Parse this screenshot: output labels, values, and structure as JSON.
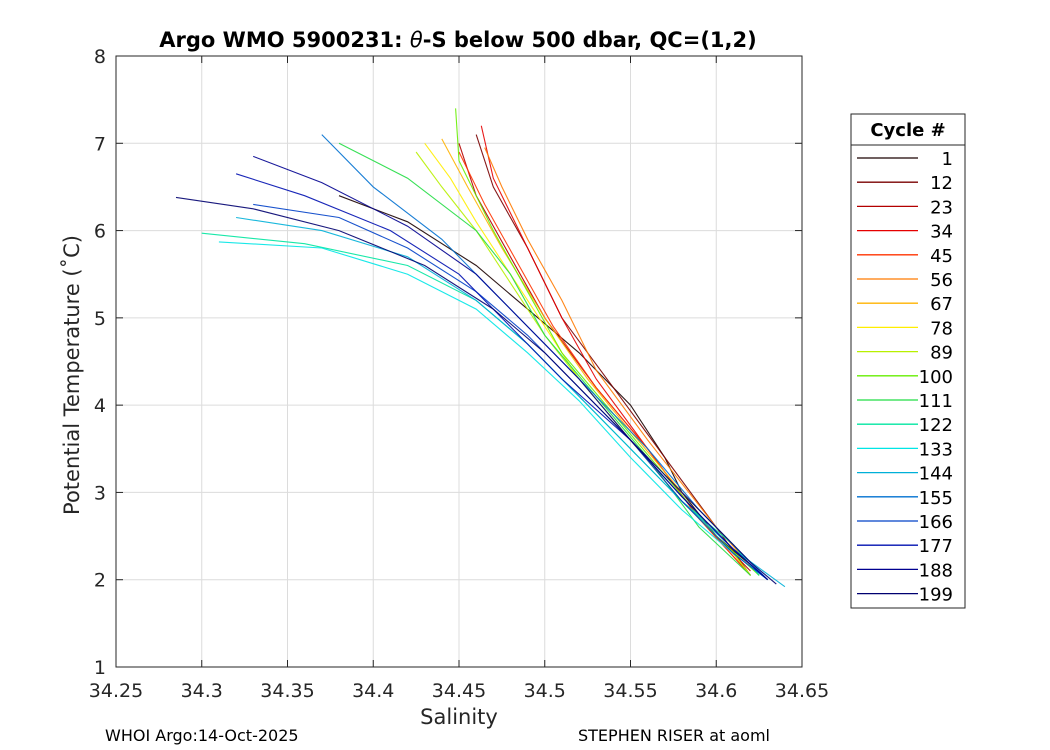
{
  "chart_data": {
    "type": "line",
    "title": "Argo WMO 5900231: θ-S below 500 dbar,  QC=(1,2)",
    "title_parts": {
      "pre": "Argo WMO 5900231: ",
      "theta": "θ",
      "post": "-S below 500 dbar,  QC=(1,2)"
    },
    "xlabel": "Salinity",
    "ylabel": "Potential Temperature (˚C)",
    "xlim": [
      34.25,
      34.65
    ],
    "ylim": [
      1,
      8
    ],
    "x_ticks": [
      34.25,
      34.3,
      34.35,
      34.4,
      34.45,
      34.5,
      34.55,
      34.6,
      34.65
    ],
    "y_ticks": [
      1,
      2,
      3,
      4,
      5,
      6,
      7,
      8
    ],
    "x_tick_labels": [
      "34.25",
      "34.3",
      "34.35",
      "34.4",
      "34.45",
      "34.5",
      "34.55",
      "34.6",
      "34.65"
    ],
    "y_tick_labels": [
      "1",
      "2",
      "3",
      "4",
      "5",
      "6",
      "7",
      "8"
    ],
    "grid": true,
    "legend": {
      "title": "Cycle #",
      "position": "right-outside",
      "entries": [
        {
          "label": "1",
          "color": "#1a0000"
        },
        {
          "label": "12",
          "color": "#7a0000"
        },
        {
          "label": "23",
          "color": "#b30000"
        },
        {
          "label": "34",
          "color": "#e60000"
        },
        {
          "label": "45",
          "color": "#ff3300"
        },
        {
          "label": "56",
          "color": "#ff7a00"
        },
        {
          "label": "67",
          "color": "#ffb300"
        },
        {
          "label": "78",
          "color": "#ffee00"
        },
        {
          "label": "89",
          "color": "#b8f000"
        },
        {
          "label": "100",
          "color": "#66ee00"
        },
        {
          "label": "111",
          "color": "#22dd44"
        },
        {
          "label": "122",
          "color": "#00e6a0"
        },
        {
          "label": "133",
          "color": "#00e6e6"
        },
        {
          "label": "144",
          "color": "#00b0d8"
        },
        {
          "label": "155",
          "color": "#0070d0"
        },
        {
          "label": "166",
          "color": "#0040c8"
        },
        {
          "label": "177",
          "color": "#0010b0"
        },
        {
          "label": "188",
          "color": "#000090"
        },
        {
          "label": "199",
          "color": "#000070"
        }
      ]
    },
    "series": [
      {
        "name": "1",
        "x": [
          34.38,
          34.42,
          34.46,
          34.49,
          34.52,
          34.55,
          34.57,
          34.58,
          34.6,
          34.63
        ],
        "y": [
          6.4,
          6.1,
          5.6,
          5.1,
          4.6,
          4.0,
          3.4,
          3.0,
          2.5,
          2.0
        ]
      },
      {
        "name": "12",
        "x": [
          34.46,
          34.47,
          34.49,
          34.51,
          34.54,
          34.57,
          34.6,
          34.62
        ],
        "y": [
          7.1,
          6.5,
          5.8,
          5.0,
          4.2,
          3.4,
          2.6,
          2.05
        ]
      },
      {
        "name": "23",
        "x": [
          34.45,
          34.46,
          34.48,
          34.5,
          34.53,
          34.56,
          34.59,
          34.62
        ],
        "y": [
          7.0,
          6.4,
          5.7,
          5.0,
          4.2,
          3.5,
          2.7,
          2.1
        ]
      },
      {
        "name": "34",
        "x": [
          34.463,
          34.47,
          34.49,
          34.51,
          34.53,
          34.56,
          34.59,
          34.62
        ],
        "y": [
          7.2,
          6.6,
          5.8,
          5.0,
          4.3,
          3.5,
          2.7,
          2.05
        ]
      },
      {
        "name": "45",
        "x": [
          34.45,
          34.465,
          34.485,
          34.505,
          34.53,
          34.56,
          34.59,
          34.62
        ],
        "y": [
          6.9,
          6.3,
          5.6,
          4.9,
          4.2,
          3.5,
          2.7,
          2.05
        ]
      },
      {
        "name": "56",
        "x": [
          34.465,
          34.475,
          34.49,
          34.51,
          34.53,
          34.56,
          34.6,
          34.625
        ],
        "y": [
          6.95,
          6.5,
          5.9,
          5.2,
          4.4,
          3.6,
          2.6,
          2.05
        ]
      },
      {
        "name": "67",
        "x": [
          34.44,
          34.455,
          34.475,
          34.5,
          34.525,
          34.55,
          34.58,
          34.61,
          34.625
        ],
        "y": [
          7.05,
          6.5,
          5.8,
          5.0,
          4.3,
          3.7,
          3.0,
          2.4,
          2.05
        ]
      },
      {
        "name": "78",
        "x": [
          34.43,
          34.445,
          34.46,
          34.48,
          34.5,
          34.52,
          34.55,
          34.58,
          34.61,
          34.62
        ],
        "y": [
          7.0,
          6.6,
          6.1,
          5.5,
          4.9,
          4.3,
          3.6,
          2.9,
          2.3,
          2.05
        ]
      },
      {
        "name": "89",
        "x": [
          34.425,
          34.44,
          34.46,
          34.48,
          34.5,
          34.52,
          34.55,
          34.58,
          34.61,
          34.62
        ],
        "y": [
          6.9,
          6.5,
          6.0,
          5.4,
          4.8,
          4.3,
          3.6,
          2.9,
          2.3,
          2.05
        ]
      },
      {
        "name": "100",
        "x": [
          34.448,
          34.45,
          34.47,
          34.49,
          34.51,
          34.54,
          34.57,
          34.6,
          34.625
        ],
        "y": [
          7.4,
          6.8,
          6.0,
          5.3,
          4.6,
          3.9,
          3.2,
          2.5,
          2.05
        ]
      },
      {
        "name": "111",
        "x": [
          34.38,
          34.42,
          34.46,
          34.48,
          34.5,
          34.53,
          34.56,
          34.59,
          34.62
        ],
        "y": [
          7.0,
          6.6,
          6.0,
          5.5,
          4.8,
          4.1,
          3.4,
          2.6,
          2.05
        ]
      },
      {
        "name": "122",
        "x": [
          34.3,
          34.36,
          34.42,
          34.46,
          34.49,
          34.52,
          34.55,
          34.58,
          34.61,
          34.625
        ],
        "y": [
          5.97,
          5.85,
          5.6,
          5.2,
          4.7,
          4.1,
          3.5,
          2.9,
          2.4,
          2.05
        ]
      },
      {
        "name": "133",
        "x": [
          34.31,
          34.37,
          34.42,
          34.46,
          34.49,
          34.52,
          34.55,
          34.58,
          34.61,
          34.63
        ],
        "y": [
          5.87,
          5.8,
          5.5,
          5.1,
          4.6,
          4.05,
          3.4,
          2.8,
          2.3,
          2.0
        ]
      },
      {
        "name": "144",
        "x": [
          34.32,
          34.37,
          34.42,
          34.46,
          34.49,
          34.52,
          34.55,
          34.58,
          34.61,
          34.64
        ],
        "y": [
          6.15,
          6.0,
          5.7,
          5.2,
          4.7,
          4.1,
          3.5,
          2.9,
          2.35,
          1.92
        ]
      },
      {
        "name": "155",
        "x": [
          34.37,
          34.4,
          34.44,
          34.47,
          34.5,
          34.53,
          34.56,
          34.59,
          34.62,
          34.63
        ],
        "y": [
          7.1,
          6.5,
          5.9,
          5.3,
          4.7,
          4.1,
          3.5,
          2.8,
          2.2,
          2.0
        ]
      },
      {
        "name": "166",
        "x": [
          34.33,
          34.38,
          34.42,
          34.46,
          34.49,
          34.52,
          34.55,
          34.58,
          34.61,
          34.63
        ],
        "y": [
          6.3,
          6.15,
          5.8,
          5.3,
          4.8,
          4.2,
          3.6,
          2.9,
          2.3,
          2.0
        ]
      },
      {
        "name": "177",
        "x": [
          34.32,
          34.36,
          34.41,
          34.45,
          34.48,
          34.51,
          34.55,
          34.58,
          34.61,
          34.63
        ],
        "y": [
          6.65,
          6.4,
          6.0,
          5.5,
          4.9,
          4.3,
          3.6,
          2.95,
          2.35,
          2.0
        ]
      },
      {
        "name": "188",
        "x": [
          34.33,
          34.37,
          34.42,
          34.46,
          34.49,
          34.52,
          34.55,
          34.58,
          34.61,
          34.63
        ],
        "y": [
          6.85,
          6.55,
          6.05,
          5.5,
          4.9,
          4.3,
          3.6,
          2.95,
          2.35,
          2.0
        ]
      },
      {
        "name": "199",
        "x": [
          34.285,
          34.33,
          34.38,
          34.43,
          34.47,
          34.5,
          34.53,
          34.56,
          34.59,
          34.62,
          34.635
        ],
        "y": [
          6.38,
          6.25,
          6.0,
          5.6,
          5.1,
          4.6,
          4.0,
          3.4,
          2.8,
          2.2,
          1.95
        ]
      }
    ]
  },
  "footer": {
    "left": "WHOI Argo:14-Oct-2025",
    "right": "STEPHEN RISER at aoml"
  }
}
